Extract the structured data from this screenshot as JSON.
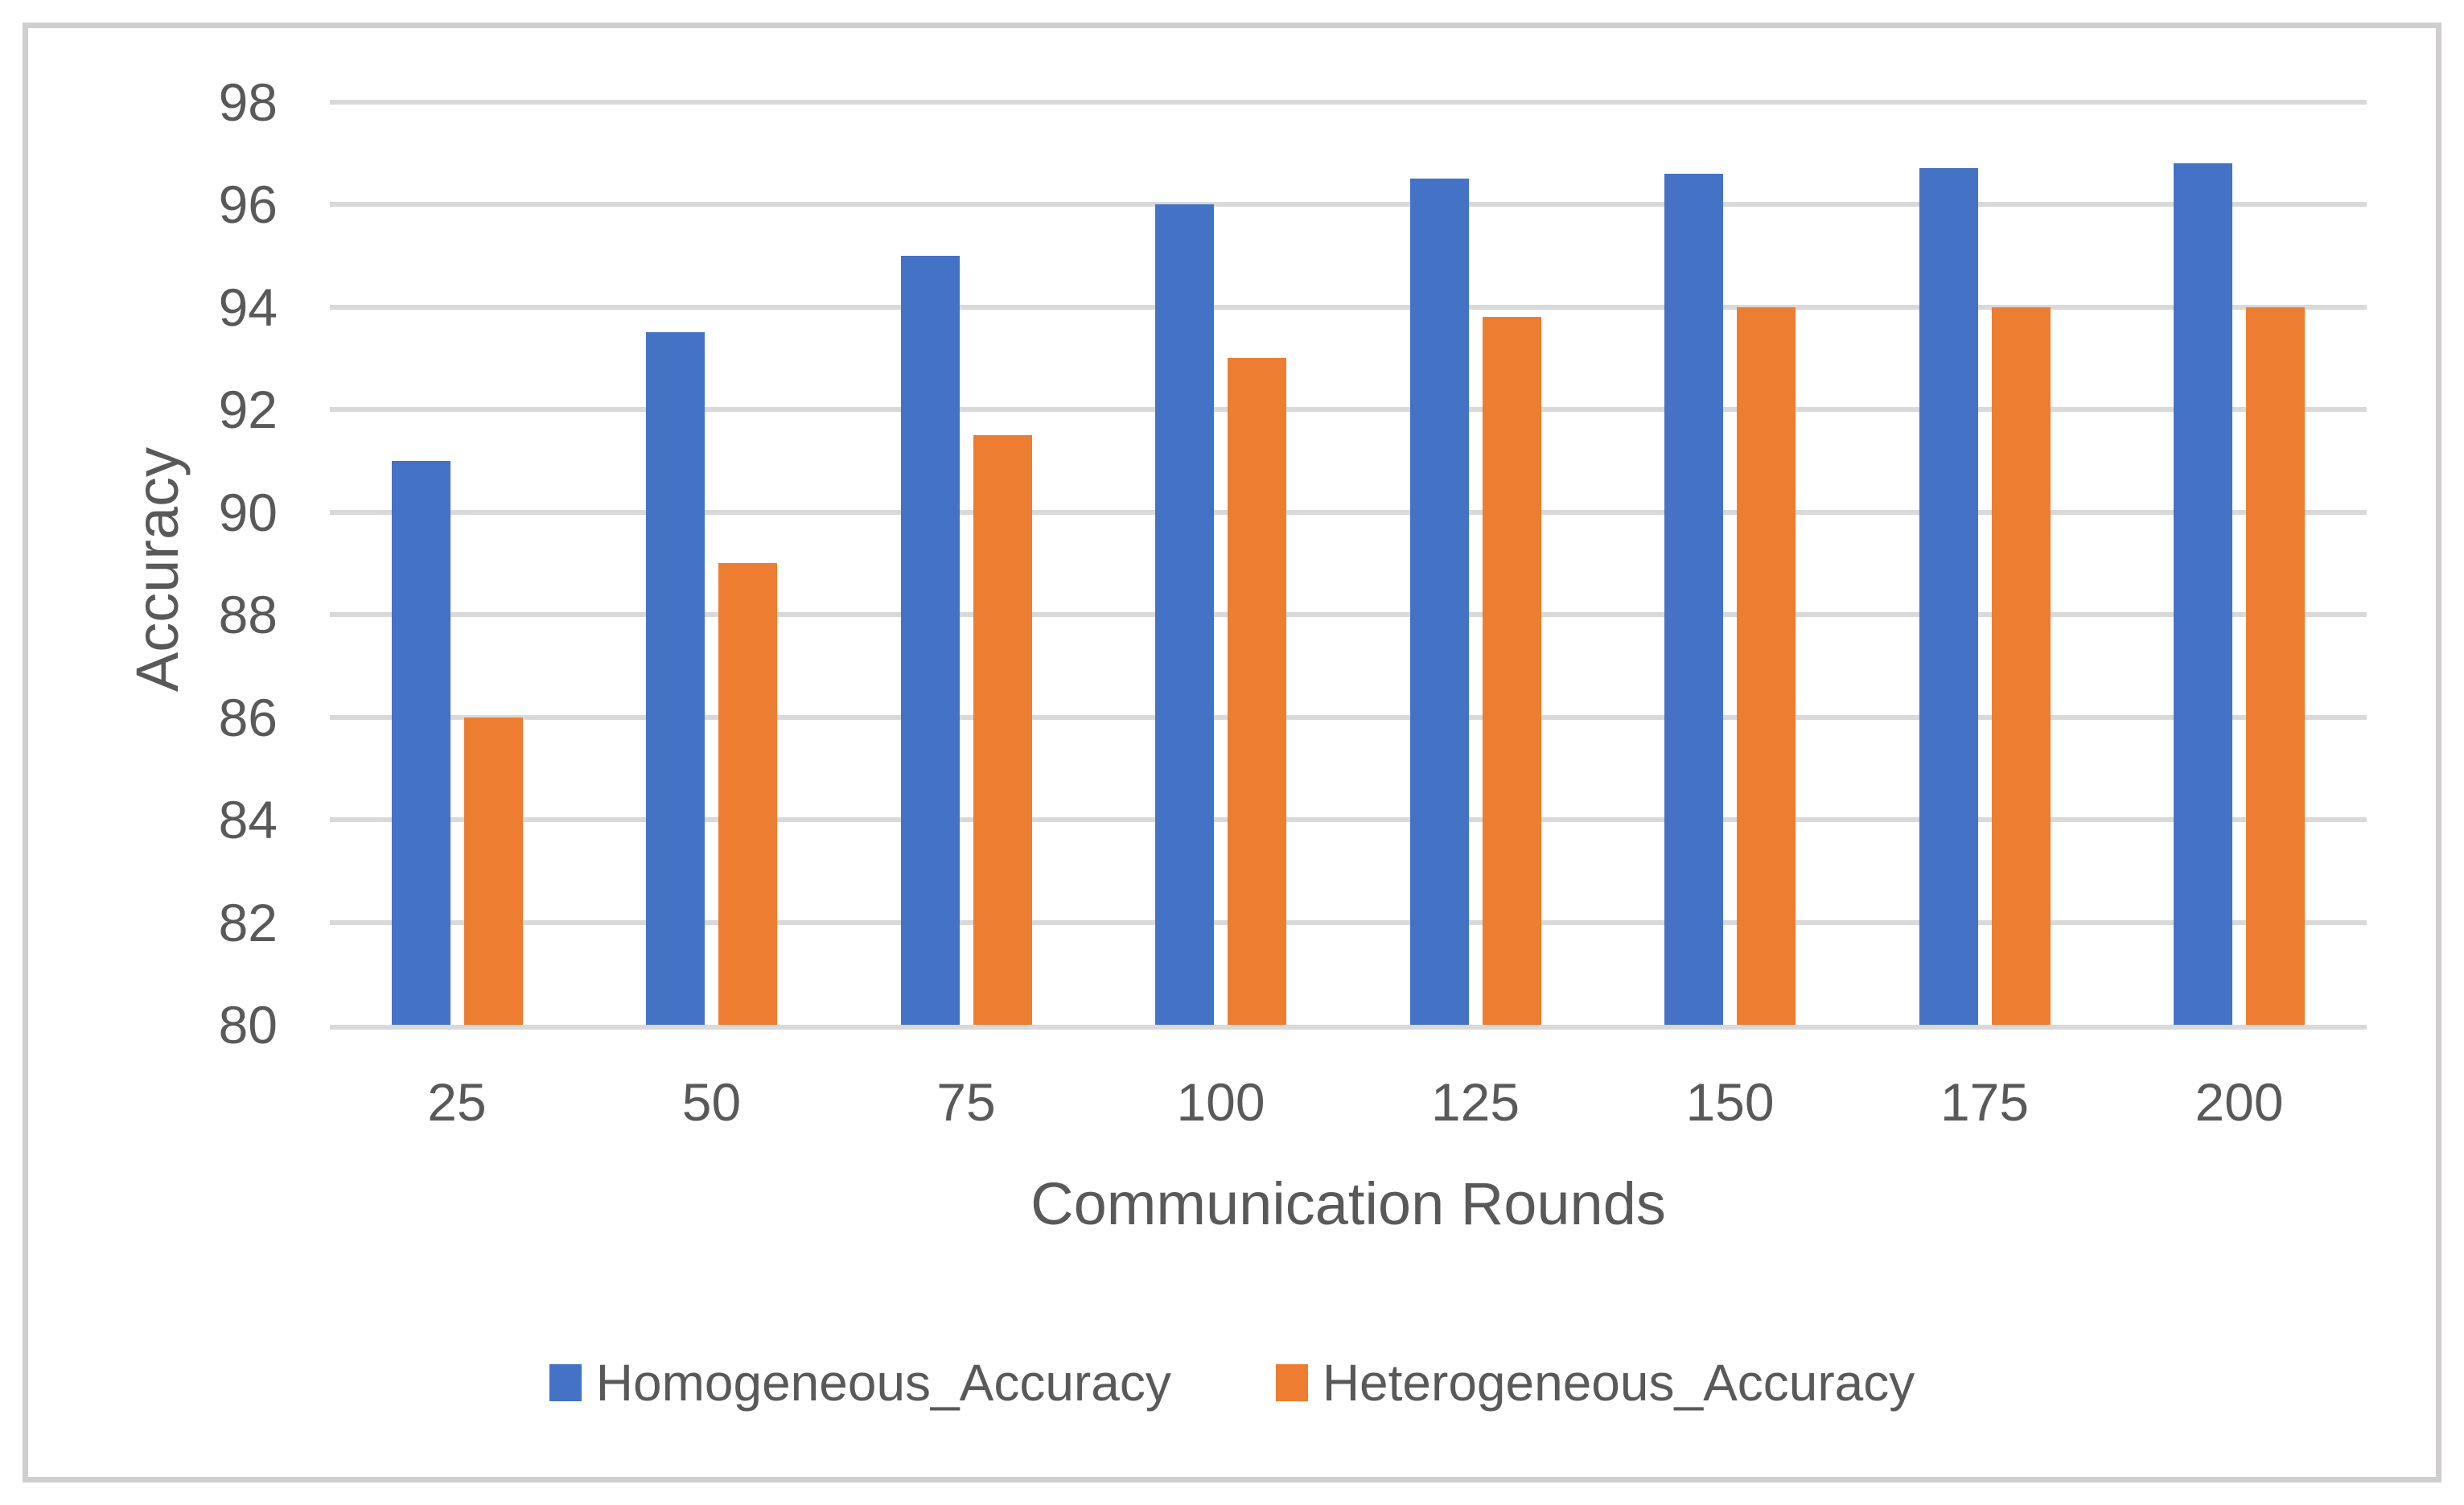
{
  "chart_data": {
    "type": "bar",
    "title": "",
    "categories": [
      "25",
      "50",
      "75",
      "100",
      "125",
      "150",
      "175",
      "200"
    ],
    "series": [
      {
        "name": "Homogeneous_Accuracy",
        "color": "#4472C4",
        "values": [
          91,
          93.5,
          95,
          96,
          96.5,
          96.6,
          96.7,
          96.8
        ]
      },
      {
        "name": "Heterogeneous_Accuracy",
        "color": "#ED7D31",
        "values": [
          86,
          89,
          91.5,
          93,
          93.8,
          94,
          94,
          94
        ]
      }
    ],
    "xlabel": "Communication Rounds",
    "ylabel": "Accuracy",
    "ylim": [
      80,
      98
    ],
    "ytick_step": 2,
    "ytick_labels": [
      "80",
      "82",
      "84",
      "86",
      "88",
      "90",
      "92",
      "94",
      "96",
      "98"
    ],
    "grid": true,
    "legend_position": "bottom"
  },
  "colors": {
    "background": "#FFFFFF",
    "frame_border": "#D0CECE",
    "gridline": "#D9D9D9",
    "axis_text": "#595959",
    "series_blue": "#4472C4",
    "series_orange": "#ED7D31"
  }
}
